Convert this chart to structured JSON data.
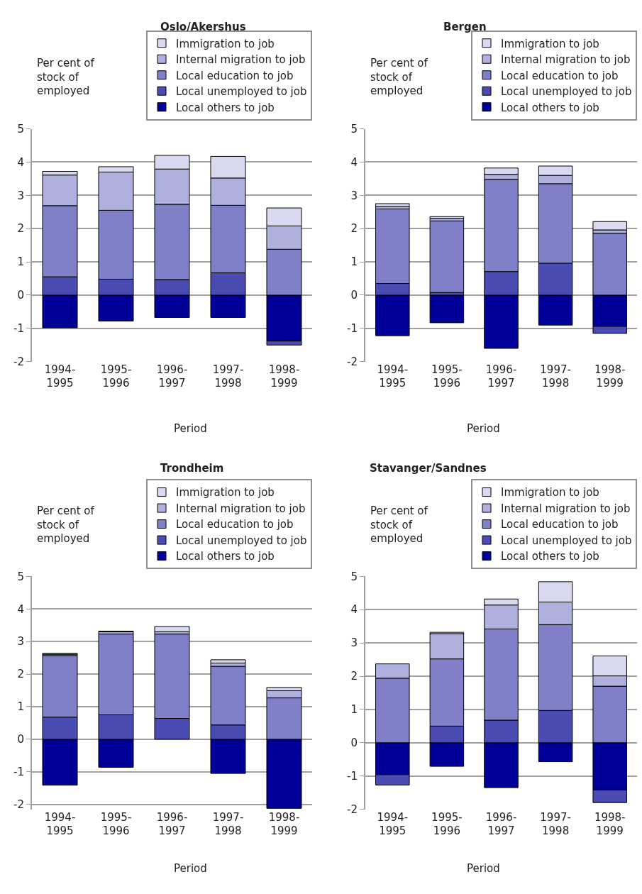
{
  "chart_data": [
    {
      "type": "bar",
      "title": "Oslo/Akershus",
      "xlabel": "Period",
      "ylabel": "Per cent of stock of employed",
      "stacked": true,
      "legend": "top right",
      "grid": "y",
      "ylim": [
        -2,
        5
      ],
      "yticks": [
        -2,
        -1,
        0,
        1,
        2,
        3,
        4,
        5
      ],
      "categories": [
        "1994-1995",
        "1995-1996",
        "1996-1997",
        "1997-1998",
        "1998-1999"
      ],
      "series": [
        {
          "name": "Local others to job",
          "color": "#000099",
          "values": [
            -0.98,
            -0.78,
            -0.67,
            -0.67,
            -1.38
          ]
        },
        {
          "name": "Local unemployed to job",
          "color": "#4b4bb4",
          "values": [
            0.55,
            0.48,
            0.47,
            0.67,
            -0.12
          ]
        },
        {
          "name": "Local education to job",
          "color": "#8080c8",
          "values": [
            2.14,
            2.07,
            2.26,
            2.03,
            1.38
          ]
        },
        {
          "name": "Internal migration to job",
          "color": "#b0b0de",
          "values": [
            0.92,
            1.15,
            1.06,
            0.82,
            0.7
          ]
        },
        {
          "name": "Immigration to job",
          "color": "#d9d9ef",
          "values": [
            0.11,
            0.16,
            0.41,
            0.65,
            0.54
          ]
        }
      ]
    },
    {
      "type": "bar",
      "title": "Bergen",
      "xlabel": "Period",
      "ylabel": "Per cent of stock of employed",
      "stacked": true,
      "legend": "top right",
      "grid": "y",
      "ylim": [
        -2,
        5
      ],
      "yticks": [
        -2,
        -1,
        0,
        1,
        2,
        3,
        4,
        5
      ],
      "categories": [
        "1994-1995",
        "1995-1996",
        "1996-1997",
        "1997-1998",
        "1998-1999"
      ],
      "series": [
        {
          "name": "Local others to job",
          "color": "#000099",
          "values": [
            -1.22,
            -0.83,
            -1.6,
            -0.9,
            -0.94
          ]
        },
        {
          "name": "Local unemployed to job",
          "color": "#4b4bb4",
          "values": [
            0.35,
            0.08,
            0.71,
            0.96,
            -0.21
          ]
        },
        {
          "name": "Local education to job",
          "color": "#8080c8",
          "values": [
            2.24,
            2.15,
            2.77,
            2.39,
            1.86
          ]
        },
        {
          "name": "Internal migration to job",
          "color": "#b0b0de",
          "values": [
            0.07,
            0.08,
            0.15,
            0.25,
            0.1
          ]
        },
        {
          "name": "Immigration to job",
          "color": "#d9d9ef",
          "values": [
            0.09,
            0.05,
            0.19,
            0.28,
            0.25
          ]
        }
      ]
    },
    {
      "type": "bar",
      "title": "Trondheim",
      "xlabel": "Period",
      "ylabel": "Per cent of stock of employed",
      "stacked": true,
      "legend": "top right",
      "grid": "y",
      "ylim": [
        -2.15,
        5
      ],
      "yticks": [
        -2,
        -1,
        0,
        1,
        2,
        3,
        4,
        5
      ],
      "categories": [
        "1994-1995",
        "1995-1996",
        "1996-1997",
        "1997-1998",
        "1998-1999"
      ],
      "series": [
        {
          "name": "Local others to job",
          "color": "#000099",
          "values": [
            -1.41,
            -0.86,
            null,
            -1.05,
            -2.12
          ]
        },
        {
          "name": "Local unemployed to job",
          "color": "#4b4bb4",
          "values": [
            0.68,
            0.75,
            0.64,
            0.44,
            null
          ]
        },
        {
          "name": "Local education to job",
          "color": "#8080c8",
          "values": [
            1.89,
            2.48,
            2.59,
            1.8,
            1.27
          ]
        },
        {
          "name": "Internal migration to job",
          "color": "#b0b0de",
          "values": [
            0.04,
            0.07,
            0.07,
            0.1,
            0.22
          ]
        },
        {
          "name": "Immigration to job",
          "color": "#d9d9ef",
          "values": [
            0.03,
            0.02,
            0.16,
            0.1,
            0.1
          ]
        }
      ]
    },
    {
      "type": "bar",
      "title": "Stavanger/Sandnes",
      "xlabel": "Period",
      "ylabel": "Per cent of stock of employed",
      "stacked": true,
      "legend": "top right",
      "grid": "y",
      "ylim": [
        -2,
        5
      ],
      "yticks": [
        -2,
        -1,
        0,
        1,
        2,
        3,
        4,
        5
      ],
      "categories": [
        "1994-1995",
        "1995-1996",
        "1996-1997",
        "1997-1998",
        "1998-1999"
      ],
      "series": [
        {
          "name": "Local others to job",
          "color": "#000099",
          "values": [
            -0.96,
            -0.71,
            -1.35,
            -0.57,
            -1.42
          ]
        },
        {
          "name": "Local unemployed to job",
          "color": "#4b4bb4",
          "values": [
            -0.31,
            0.5,
            0.68,
            0.97,
            -0.38
          ]
        },
        {
          "name": "Local education to job",
          "color": "#8080c8",
          "values": [
            1.94,
            2.02,
            2.74,
            2.58,
            1.7
          ]
        },
        {
          "name": "Internal migration to job",
          "color": "#b0b0de",
          "values": [
            0.43,
            0.76,
            0.72,
            0.68,
            0.31
          ]
        },
        {
          "name": "Immigration to job",
          "color": "#d9d9ef",
          "values": [
            null,
            0.04,
            0.18,
            0.61,
            0.6
          ]
        }
      ]
    }
  ]
}
